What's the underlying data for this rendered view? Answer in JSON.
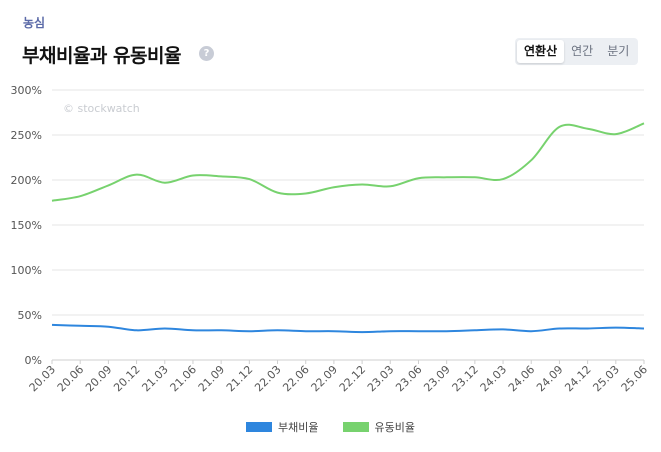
{
  "header": {
    "company": "농심",
    "title": "부채비율과 유동비율",
    "help_icon": "?"
  },
  "tabs": [
    {
      "label": "연환산",
      "active": true
    },
    {
      "label": "연간",
      "active": false
    },
    {
      "label": "분기",
      "active": false
    }
  ],
  "watermark": "© stockwatch",
  "colors": {
    "debt": "#2e86de",
    "current": "#77d26e",
    "grid": "#e6e6e6",
    "axis_text": "#555555"
  },
  "chart_data": {
    "type": "line",
    "title": "부채비율과 유동비율",
    "xlabel": "",
    "ylabel": "",
    "ylim": [
      0,
      300
    ],
    "yticks": [
      0,
      50,
      100,
      150,
      200,
      250,
      300
    ],
    "ytick_labels": [
      "0%",
      "50%",
      "100%",
      "150%",
      "200%",
      "250%",
      "300%"
    ],
    "categories": [
      "20.03",
      "20.06",
      "20.09",
      "20.12",
      "21.03",
      "21.06",
      "21.09",
      "21.12",
      "22.03",
      "22.06",
      "22.09",
      "22.12",
      "23.03",
      "23.06",
      "23.09",
      "23.12",
      "24.03",
      "24.06",
      "24.09",
      "24.12",
      "25.03",
      "25.06"
    ],
    "series": [
      {
        "name": "부채비율",
        "color": "#2e86de",
        "values": [
          39,
          38,
          37,
          33,
          35,
          33,
          33,
          32,
          33,
          32,
          32,
          31,
          32,
          32,
          32,
          33,
          34,
          32,
          35,
          35,
          36,
          35
        ]
      },
      {
        "name": "유동비율",
        "color": "#77d26e",
        "values": [
          177,
          182,
          194,
          206,
          197,
          205,
          204,
          201,
          186,
          185,
          192,
          195,
          193,
          202,
          203,
          203,
          201,
          222,
          259,
          257,
          251,
          263
        ]
      }
    ],
    "legend": [
      "부채비율",
      "유동비율"
    ],
    "legend_position": "bottom-center",
    "grid": true
  }
}
